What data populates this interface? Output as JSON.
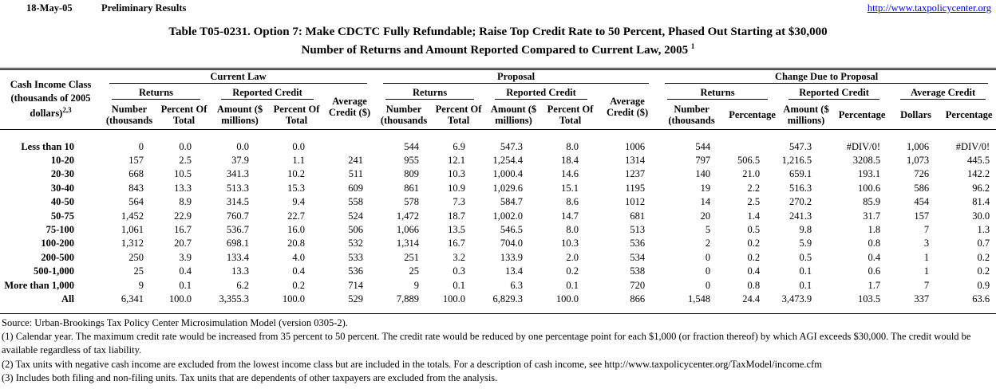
{
  "page_header": {
    "date": "18-May-05",
    "status": "Preliminary Results",
    "url": "http://www.taxpolicycenter.org"
  },
  "title": {
    "line1": "Table T05-0231. Option 7: Make CDCTC Fully Refundable; Raise Top Credit Rate to 50 Percent, Phased Out Starting at $30,000",
    "line2": "Number of Returns and Amount Reported Compared to Current Law, 2005",
    "line2_superscript": "1"
  },
  "table": {
    "corner_label": "Cash Income Class (thousands of 2005 dollars)",
    "corner_superscript": "2,3",
    "sections": {
      "current_law": {
        "title": "Current Law",
        "returns": "Returns",
        "reported_credit": "Reported Credit",
        "average_credit": "Average Credit ($)",
        "cols": [
          "Number (thousands",
          "Percent Of Total",
          "Amount ($ millions)",
          "Percent Of Total"
        ]
      },
      "proposal": {
        "title": "Proposal",
        "returns": "Returns",
        "reported_credit": "Reported Credit",
        "average_credit": "Average Credit ($)",
        "cols": [
          "Number (thousands",
          "Percent Of Total",
          "Amount ($ millions)",
          "Percent Of Total"
        ]
      },
      "change": {
        "title": "Change Due to Proposal",
        "returns": "Returns",
        "reported_credit": "Reported Credit",
        "average_credit": "Average Credit",
        "cols": [
          "Number (thousands",
          "Percentage",
          "Amount ($ millions)",
          "Percentage",
          "Dollars",
          "Percentage"
        ]
      }
    },
    "rows": [
      {
        "label": "Less than 10",
        "values": [
          "0",
          "0.0",
          "0.0",
          "0.0",
          "",
          "544",
          "6.9",
          "547.3",
          "8.0",
          "1006",
          "544",
          "",
          "547.3",
          "#DIV/0!",
          "1,006",
          "#DIV/0!"
        ]
      },
      {
        "label": "10-20",
        "values": [
          "157",
          "2.5",
          "37.9",
          "1.1",
          "241",
          "955",
          "12.1",
          "1,254.4",
          "18.4",
          "1314",
          "797",
          "506.5",
          "1,216.5",
          "3208.5",
          "1,073",
          "445.5"
        ]
      },
      {
        "label": "20-30",
        "values": [
          "668",
          "10.5",
          "341.3",
          "10.2",
          "511",
          "809",
          "10.3",
          "1,000.4",
          "14.6",
          "1237",
          "140",
          "21.0",
          "659.1",
          "193.1",
          "726",
          "142.2"
        ]
      },
      {
        "label": "30-40",
        "values": [
          "843",
          "13.3",
          "513.3",
          "15.3",
          "609",
          "861",
          "10.9",
          "1,029.6",
          "15.1",
          "1195",
          "19",
          "2.2",
          "516.3",
          "100.6",
          "586",
          "96.2"
        ]
      },
      {
        "label": "40-50",
        "values": [
          "564",
          "8.9",
          "314.5",
          "9.4",
          "558",
          "578",
          "7.3",
          "584.7",
          "8.6",
          "1012",
          "14",
          "2.5",
          "270.2",
          "85.9",
          "454",
          "81.4"
        ]
      },
      {
        "label": "50-75",
        "values": [
          "1,452",
          "22.9",
          "760.7",
          "22.7",
          "524",
          "1,472",
          "18.7",
          "1,002.0",
          "14.7",
          "681",
          "20",
          "1.4",
          "241.3",
          "31.7",
          "157",
          "30.0"
        ]
      },
      {
        "label": "75-100",
        "values": [
          "1,061",
          "16.7",
          "536.7",
          "16.0",
          "506",
          "1,066",
          "13.5",
          "546.5",
          "8.0",
          "513",
          "5",
          "0.5",
          "9.8",
          "1.8",
          "7",
          "1.3"
        ]
      },
      {
        "label": "100-200",
        "values": [
          "1,312",
          "20.7",
          "698.1",
          "20.8",
          "532",
          "1,314",
          "16.7",
          "704.0",
          "10.3",
          "536",
          "2",
          "0.2",
          "5.9",
          "0.8",
          "3",
          "0.7"
        ]
      },
      {
        "label": "200-500",
        "values": [
          "250",
          "3.9",
          "133.4",
          "4.0",
          "533",
          "251",
          "3.2",
          "133.9",
          "2.0",
          "534",
          "0",
          "0.2",
          "0.5",
          "0.4",
          "1",
          "0.2"
        ]
      },
      {
        "label": "500-1,000",
        "values": [
          "25",
          "0.4",
          "13.3",
          "0.4",
          "536",
          "25",
          "0.3",
          "13.4",
          "0.2",
          "538",
          "0",
          "0.4",
          "0.1",
          "0.6",
          "1",
          "0.2"
        ]
      },
      {
        "label": "More than 1,000",
        "values": [
          "9",
          "0.1",
          "6.2",
          "0.2",
          "714",
          "9",
          "0.1",
          "6.3",
          "0.1",
          "720",
          "0",
          "0.8",
          "0.1",
          "1.7",
          "7",
          "0.9"
        ]
      },
      {
        "label": "All",
        "values": [
          "6,341",
          "100.0",
          "3,355.3",
          "100.0",
          "529",
          "7,889",
          "100.0",
          "6,829.3",
          "100.0",
          "866",
          "1,548",
          "24.4",
          "3,473.9",
          "103.5",
          "337",
          "63.6"
        ]
      }
    ]
  },
  "footnotes": {
    "source": "Source: Urban-Brookings Tax Policy Center Microsimulation Model (version 0305-2).",
    "notes": [
      "(1) Calendar year. The maximum credit rate would be increased from 35 percent to 50 percent.  The credit rate would be reduced by one percentage point for each $1,000 (or fraction thereof) by which AGI exceeds $30,000.  The credit would be available regardless of tax liability.",
      "(2) Tax units with negative cash income are excluded from the lowest income class but are included in the totals. For a description of cash income, see http://www.taxpolicycenter.org/TaxModel/income.cfm",
      "(3) Includes both filing and non-filing units.  Tax units that are dependents of other taxpayers are excluded from the analysis."
    ]
  },
  "colors": {
    "link": "#0000EE",
    "text": "#000000",
    "background": "#FFFFFF"
  }
}
